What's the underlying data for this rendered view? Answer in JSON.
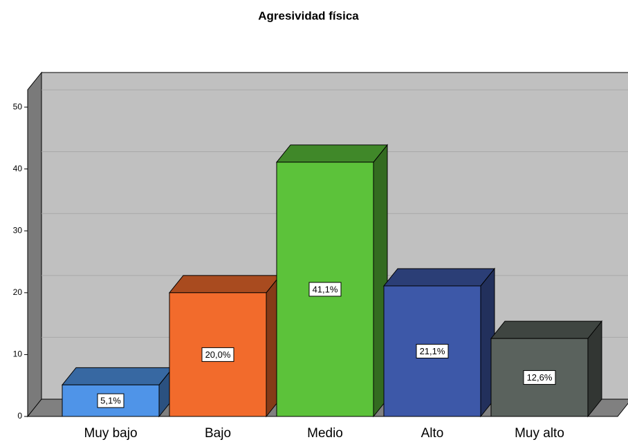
{
  "chart_data": {
    "type": "bar3d",
    "title": "Agresividad física",
    "categories": [
      "Muy bajo",
      "Bajo",
      "Medio",
      "Alto",
      "Muy alto"
    ],
    "values": [
      5.1,
      20.0,
      41.1,
      21.1,
      12.6
    ],
    "value_labels": [
      "5,1%",
      "20,0%",
      "41,1%",
      "21,1%",
      "12,6%"
    ],
    "colors": [
      "#4f94e8",
      "#f26b2c",
      "#5cc23a",
      "#3d58a8",
      "#5a625d"
    ],
    "ylim": [
      0,
      52.8
    ],
    "yticks": [
      0,
      10,
      20,
      30,
      40,
      50
    ],
    "grid": true
  }
}
